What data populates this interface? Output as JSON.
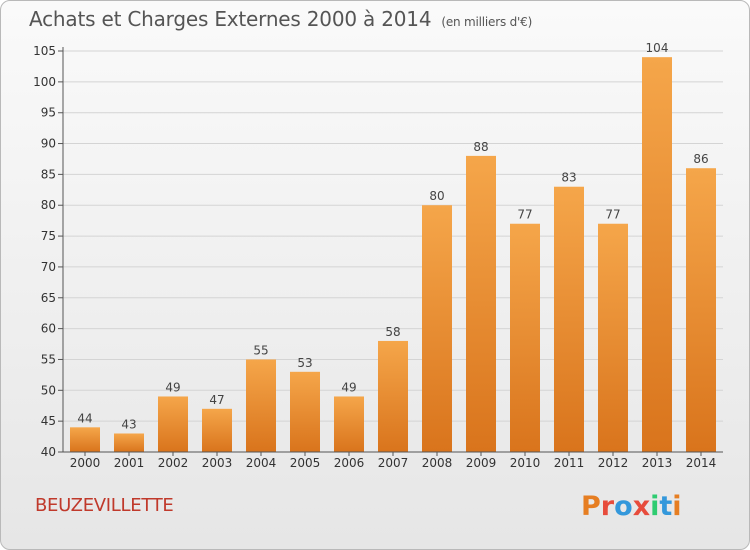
{
  "header": {
    "title": "Achats et Charges Externes 2000 à 2014",
    "subtitle": "(en milliers d'€)"
  },
  "footer": {
    "commune": "BEUZEVILLETTE",
    "logo_text": "Proxiti",
    "logo_colors": [
      "#e67e22",
      "#e74c3c",
      "#3498db",
      "#e74c3c",
      "#2ecc71",
      "#3498db",
      "#e67e22"
    ]
  },
  "colors": {
    "bar_light": "#f5a64a",
    "bar_dark": "#d9741c",
    "grid": "#d4d4d4",
    "axis": "#555555"
  },
  "chart_data": {
    "type": "bar",
    "title": "Achats et Charges Externes 2000 à 2014",
    "subtitle": "(en milliers d'€)",
    "categories": [
      "2000",
      "2001",
      "2002",
      "2003",
      "2004",
      "2005",
      "2006",
      "2007",
      "2008",
      "2009",
      "2010",
      "2011",
      "2012",
      "2013",
      "2014"
    ],
    "values": [
      44,
      43,
      49,
      47,
      55,
      53,
      49,
      58,
      80,
      88,
      77,
      83,
      77,
      104,
      86
    ],
    "ylim": [
      40,
      105
    ],
    "yticks": [
      40,
      45,
      50,
      55,
      60,
      65,
      70,
      75,
      80,
      85,
      90,
      95,
      100,
      105
    ],
    "grid": true,
    "data_labels": true
  }
}
